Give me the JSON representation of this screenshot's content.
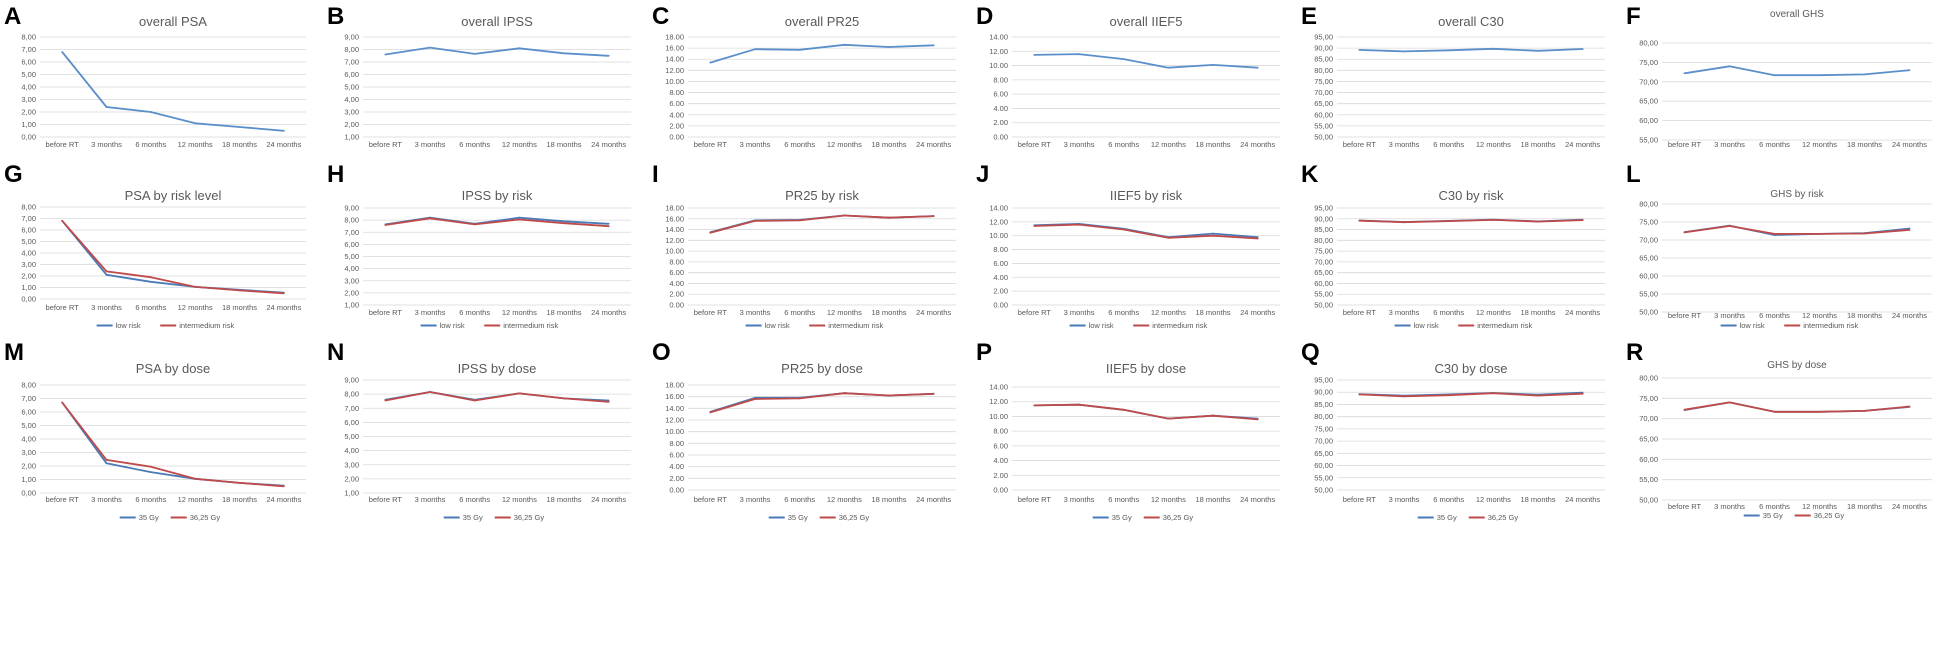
{
  "colors": {
    "blue": "#4a7ab8",
    "red": "#bf4a4a",
    "overall": "#5b8fca"
  },
  "x_categories": [
    "before RT",
    "3 months",
    "6 months",
    "12 months",
    "18 months",
    "24 months"
  ],
  "chart_data": [
    {
      "letter": "A",
      "type": "line",
      "title": "overall PSA",
      "ylim": [
        0,
        8
      ],
      "yticks": [
        "0,00",
        "1,00",
        "2,00",
        "3,00",
        "4,00",
        "5,00",
        "6,00",
        "7,00",
        "8,00"
      ],
      "series": [
        {
          "name": "overall",
          "values": [
            6.8,
            2.4,
            2.0,
            1.1,
            0.8,
            0.5
          ]
        }
      ]
    },
    {
      "letter": "B",
      "type": "line",
      "title": "overall IPSS",
      "ylim": [
        1,
        9
      ],
      "yticks": [
        "1,00",
        "2,00",
        "3,00",
        "4,00",
        "5,00",
        "6,00",
        "7,00",
        "8,00",
        "9,00"
      ],
      "series": [
        {
          "name": "overall",
          "values": [
            7.6,
            8.15,
            7.65,
            8.1,
            7.7,
            7.5
          ]
        }
      ]
    },
    {
      "letter": "C",
      "type": "line",
      "title": "overall PR25",
      "ylim": [
        0,
        18
      ],
      "yticks": [
        "0.00",
        "2.00",
        "4.00",
        "6.00",
        "8.00",
        "10.00",
        "12.00",
        "14.00",
        "16.00",
        "18.00"
      ],
      "series": [
        {
          "name": "overall",
          "values": [
            13.4,
            15.8,
            15.7,
            16.6,
            16.2,
            16.5
          ]
        }
      ]
    },
    {
      "letter": "D",
      "type": "line",
      "title": "overall IIEF5",
      "ylim": [
        0,
        14
      ],
      "yticks": [
        "0.00",
        "2.00",
        "4.00",
        "6.00",
        "8.00",
        "10.00",
        "12.00",
        "14.00"
      ],
      "series": [
        {
          "name": "overall",
          "values": [
            11.5,
            11.6,
            10.9,
            9.7,
            10.1,
            9.7
          ]
        }
      ]
    },
    {
      "letter": "E",
      "type": "line",
      "title": "overall C30",
      "ylim": [
        50,
        95
      ],
      "yticks": [
        "50,00",
        "55,00",
        "60,00",
        "65,00",
        "70,00",
        "75,00",
        "80,00",
        "85,00",
        "90,00",
        "95,00"
      ],
      "series": [
        {
          "name": "overall",
          "values": [
            89.2,
            88.5,
            89.0,
            89.7,
            88.8,
            89.6
          ]
        }
      ]
    },
    {
      "letter": "F",
      "type": "line",
      "title": "overall GHS",
      "ylim": [
        55,
        80
      ],
      "yticks": [
        "55,00",
        "60,00",
        "65,00",
        "70,00",
        "75,00",
        "80,00"
      ],
      "series": [
        {
          "name": "overall",
          "values": [
            72.2,
            74.0,
            71.7,
            71.7,
            71.9,
            73.0
          ]
        }
      ]
    },
    {
      "letter": "G",
      "type": "line",
      "title": "PSA by risk level",
      "ylim": [
        0,
        8
      ],
      "yticks": [
        "0,00",
        "1,00",
        "2,00",
        "3,00",
        "4,00",
        "5,00",
        "6,00",
        "7,00",
        "8,00"
      ],
      "legend": [
        "low risk",
        "intermedium risk"
      ],
      "series": [
        {
          "name": "low risk",
          "values": [
            6.8,
            2.1,
            1.5,
            1.05,
            0.8,
            0.55
          ]
        },
        {
          "name": "intermedium risk",
          "values": [
            6.8,
            2.4,
            1.9,
            1.05,
            0.75,
            0.5
          ]
        }
      ]
    },
    {
      "letter": "H",
      "type": "line",
      "title": "IPSS by risk",
      "ylim": [
        1,
        9
      ],
      "yticks": [
        "1,00",
        "2,00",
        "3,00",
        "4,00",
        "5,00",
        "6,00",
        "7,00",
        "8,00",
        "9,00"
      ],
      "legend": [
        "low risk",
        "intermedium risk"
      ],
      "series": [
        {
          "name": "low risk",
          "values": [
            7.65,
            8.2,
            7.7,
            8.2,
            7.9,
            7.7
          ]
        },
        {
          "name": "intermedium risk",
          "values": [
            7.6,
            8.15,
            7.65,
            8.05,
            7.75,
            7.5
          ]
        }
      ]
    },
    {
      "letter": "I",
      "type": "line",
      "title": "PR25 by risk",
      "ylim": [
        0,
        18
      ],
      "yticks": [
        "0.00",
        "2.00",
        "4.00",
        "6.00",
        "8.00",
        "10.00",
        "12.00",
        "14.00",
        "16.00",
        "18.00"
      ],
      "legend": [
        "low risk",
        "intermedium risk"
      ],
      "series": [
        {
          "name": "low risk",
          "values": [
            13.5,
            15.7,
            15.8,
            16.6,
            16.2,
            16.5
          ]
        },
        {
          "name": "intermedium risk",
          "values": [
            13.4,
            15.6,
            15.7,
            16.6,
            16.2,
            16.5
          ]
        }
      ]
    },
    {
      "letter": "J",
      "type": "line",
      "title": "IIEF5 by risk",
      "ylim": [
        0,
        14
      ],
      "yticks": [
        "0.00",
        "2.00",
        "4.00",
        "6.00",
        "8.00",
        "10.00",
        "12.00",
        "14.00"
      ],
      "legend": [
        "low risk",
        "intermedium risk"
      ],
      "series": [
        {
          "name": "low risk",
          "values": [
            11.5,
            11.7,
            11.0,
            9.8,
            10.3,
            9.8
          ]
        },
        {
          "name": "intermedium risk",
          "values": [
            11.4,
            11.6,
            10.9,
            9.7,
            10.0,
            9.6
          ]
        }
      ]
    },
    {
      "letter": "K",
      "type": "line",
      "title": "C30 by risk",
      "ylim": [
        50,
        95
      ],
      "yticks": [
        "50,00",
        "55,00",
        "60,00",
        "65,00",
        "70,00",
        "75,00",
        "80,00",
        "85,00",
        "90,00",
        "95,00"
      ],
      "legend": [
        "low risk",
        "intermedium risk"
      ],
      "series": [
        {
          "name": "low risk",
          "values": [
            89.2,
            88.5,
            89.0,
            89.6,
            88.8,
            89.6
          ]
        },
        {
          "name": "intermedium risk",
          "values": [
            89.1,
            88.4,
            88.9,
            89.5,
            88.7,
            89.4
          ]
        }
      ]
    },
    {
      "letter": "L",
      "type": "line",
      "title": "GHS by risk",
      "ylim": [
        50,
        80
      ],
      "yticks": [
        "50,00",
        "55,00",
        "60,00",
        "65,00",
        "70,00",
        "75,00",
        "80,00"
      ],
      "legend": [
        "low risk",
        "intermedium risk"
      ],
      "series": [
        {
          "name": "low risk",
          "values": [
            72.2,
            74.0,
            71.4,
            71.7,
            71.9,
            73.2
          ]
        },
        {
          "name": "intermedium risk",
          "values": [
            72.1,
            73.9,
            71.7,
            71.7,
            71.8,
            72.8
          ]
        }
      ]
    },
    {
      "letter": "M",
      "type": "line",
      "title": "PSA by dose",
      "ylim": [
        0,
        8
      ],
      "yticks": [
        "0,00",
        "1,00",
        "2,00",
        "3,00",
        "4,00",
        "5,00",
        "6,00",
        "7,00",
        "8,00"
      ],
      "legend": [
        "35 Gy",
        "36,25 Gy"
      ],
      "series": [
        {
          "name": "35 Gy",
          "values": [
            6.7,
            2.2,
            1.55,
            1.05,
            0.75,
            0.55
          ]
        },
        {
          "name": "36,25 Gy",
          "values": [
            6.7,
            2.45,
            1.95,
            1.05,
            0.75,
            0.5
          ]
        }
      ]
    },
    {
      "letter": "N",
      "type": "line",
      "title": "IPSS by dose",
      "ylim": [
        1,
        9
      ],
      "yticks": [
        "1,00",
        "2,00",
        "3,00",
        "4,00",
        "5,00",
        "6,00",
        "7,00",
        "8,00",
        "9,00"
      ],
      "legend": [
        "35 Gy",
        "36,25 Gy"
      ],
      "series": [
        {
          "name": "35 Gy",
          "values": [
            7.6,
            8.15,
            7.6,
            8.05,
            7.7,
            7.55
          ]
        },
        {
          "name": "36,25 Gy",
          "values": [
            7.55,
            8.15,
            7.55,
            8.05,
            7.7,
            7.45
          ]
        }
      ]
    },
    {
      "letter": "O",
      "type": "line",
      "title": "PR25 by dose",
      "ylim": [
        0,
        18
      ],
      "yticks": [
        "0.00",
        "2.00",
        "4.00",
        "6.00",
        "8.00",
        "10.00",
        "12.00",
        "14.00",
        "16.00",
        "18.00"
      ],
      "legend": [
        "35 Gy",
        "36,25 Gy"
      ],
      "series": [
        {
          "name": "35 Gy",
          "values": [
            13.4,
            15.8,
            15.8,
            16.6,
            16.2,
            16.5
          ]
        },
        {
          "name": "36,25 Gy",
          "values": [
            13.3,
            15.6,
            15.7,
            16.6,
            16.2,
            16.5
          ]
        }
      ]
    },
    {
      "letter": "P",
      "type": "line",
      "title": "IIEF5 by dose",
      "ylim": [
        0,
        14
      ],
      "yticks": [
        "0.00",
        "2.00",
        "4.00",
        "6.00",
        "8.00",
        "10.00",
        "12.00",
        "14.00"
      ],
      "legend": [
        "35 Gy",
        "36,25 Gy"
      ],
      "series": [
        {
          "name": "35 Gy",
          "values": [
            11.5,
            11.6,
            10.9,
            9.7,
            10.1,
            9.7
          ]
        },
        {
          "name": "36,25 Gy",
          "values": [
            11.5,
            11.6,
            10.9,
            9.7,
            10.1,
            9.6
          ]
        }
      ]
    },
    {
      "letter": "Q",
      "type": "line",
      "title": "C30 by dose",
      "ylim": [
        50,
        95
      ],
      "yticks": [
        "50,00",
        "55,00",
        "60,00",
        "65,00",
        "70,00",
        "75,00",
        "80,00",
        "85,00",
        "90,00",
        "95,00"
      ],
      "legend": [
        "35 Gy",
        "36,25 Gy"
      ],
      "series": [
        {
          "name": "35 Gy",
          "values": [
            89.2,
            88.6,
            89.1,
            89.7,
            89.0,
            89.8
          ]
        },
        {
          "name": "36,25 Gy",
          "values": [
            89.1,
            88.3,
            88.8,
            89.6,
            88.6,
            89.4
          ]
        }
      ]
    },
    {
      "letter": "R",
      "type": "line",
      "title": "GHS by dose",
      "ylim": [
        50,
        80
      ],
      "yticks": [
        "50,00",
        "55,00",
        "60,00",
        "65,00",
        "70,00",
        "75,00",
        "80,00"
      ],
      "legend": [
        "35 Gy",
        "36,25 Gy"
      ],
      "series": [
        {
          "name": "35 Gy",
          "values": [
            72.1,
            74.0,
            71.7,
            71.7,
            71.9,
            72.9
          ]
        },
        {
          "name": "36,25 Gy",
          "values": [
            72.2,
            74.0,
            71.7,
            71.7,
            71.9,
            73.0
          ]
        }
      ]
    }
  ]
}
